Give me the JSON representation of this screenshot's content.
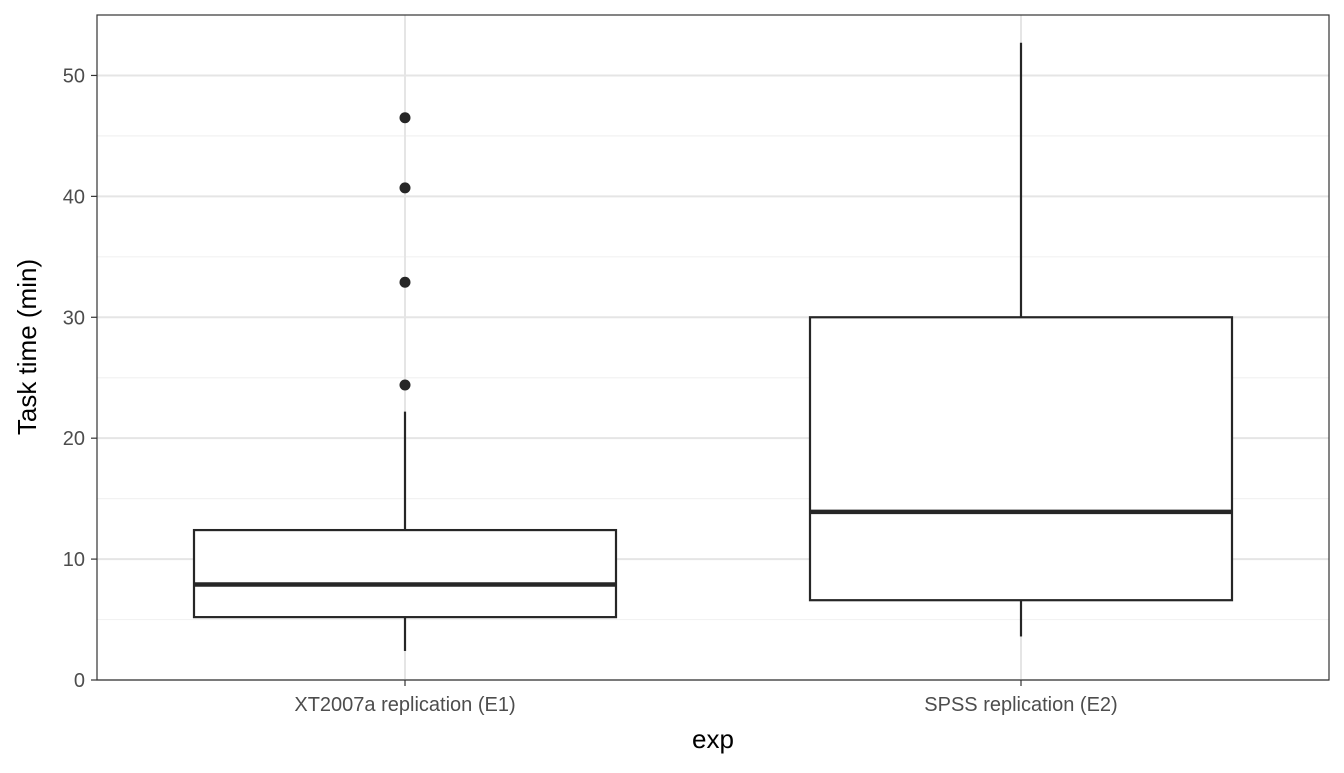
{
  "chart_data": {
    "type": "boxplot",
    "title": "",
    "xlabel": "exp",
    "ylabel": "Task time (min)",
    "ylim": [
      0,
      55
    ],
    "y_major_ticks": [
      0,
      10,
      20,
      30,
      40,
      50
    ],
    "y_minor_ticks": [
      5,
      15,
      25,
      35,
      45
    ],
    "grid": true,
    "theme": "bw",
    "categories": [
      "XT2007a replication (E1)",
      "SPSS replication (E2)"
    ],
    "boxes": [
      {
        "category": "XT2007a replication (E1)",
        "whisker_low": 2.4,
        "q1": 5.2,
        "median": 7.9,
        "q3": 12.4,
        "whisker_high": 22.2,
        "outliers": [
          24.4,
          32.9,
          40.7,
          46.5
        ]
      },
      {
        "category": "SPSS replication (E2)",
        "whisker_low": 3.6,
        "q1": 6.6,
        "median": 13.9,
        "q3": 30.0,
        "whisker_high": 52.7,
        "outliers": []
      }
    ],
    "colors": {
      "box_fill": "#ffffff",
      "box_stroke": "#262626",
      "outlier": "#262626",
      "grid_major": "#e5e5e5",
      "grid_minor": "#f2f2f2",
      "panel_border": "#333333",
      "tick_text": "#4d4d4d",
      "title_text": "#000000"
    }
  }
}
